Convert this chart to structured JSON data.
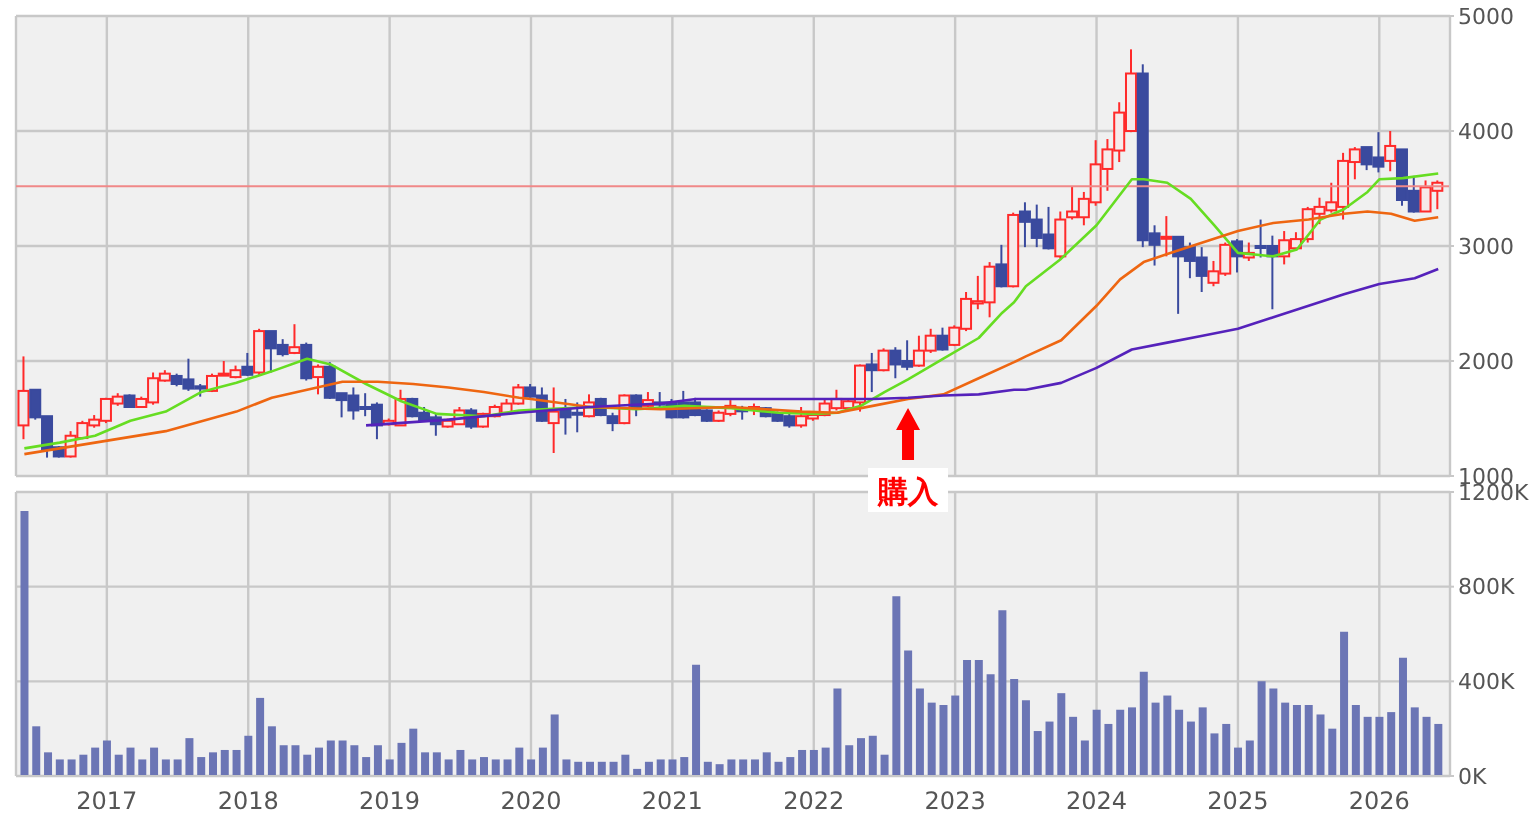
{
  "chart_data": [
    {
      "type": "candlestick",
      "x": [
        "2016-06",
        "2016-07",
        "2016-08",
        "2016-09",
        "2016-10",
        "2016-11",
        "2016-12",
        "2017-01",
        "2017-02",
        "2017-03",
        "2017-04",
        "2017-05",
        "2017-06",
        "2017-07",
        "2017-08",
        "2017-09",
        "2017-10",
        "2017-11",
        "2017-12",
        "2018-01",
        "2018-02",
        "2018-03",
        "2018-04",
        "2018-05",
        "2018-06",
        "2018-07",
        "2018-08",
        "2018-09",
        "2018-10",
        "2018-11",
        "2018-12",
        "2019-01",
        "2019-02",
        "2019-03",
        "2019-04",
        "2019-05",
        "2019-06",
        "2019-07",
        "2019-08",
        "2019-09",
        "2019-10",
        "2019-11",
        "2019-12",
        "2020-01",
        "2020-02",
        "2020-03",
        "2020-04",
        "2020-05",
        "2020-06",
        "2020-07",
        "2020-08",
        "2020-09",
        "2020-10",
        "2020-11",
        "2020-12",
        "2021-01",
        "2021-02",
        "2021-03",
        "2021-04",
        "2021-05",
        "2021-06",
        "2021-07",
        "2021-08",
        "2021-09",
        "2021-10",
        "2021-11",
        "2021-12",
        "2022-01",
        "2022-02",
        "2022-03",
        "2022-04",
        "2022-05",
        "2022-06",
        "2022-07",
        "2022-08",
        "2022-09",
        "2022-10",
        "2022-11",
        "2022-12",
        "2023-01",
        "2023-02",
        "2023-03",
        "2023-04",
        "2023-05",
        "2023-06",
        "2023-07",
        "2023-08",
        "2023-09",
        "2023-10",
        "2023-11",
        "2023-12",
        "2024-01",
        "2024-02",
        "2024-03",
        "2024-04",
        "2024-05",
        "2024-06",
        "2024-07",
        "2024-08",
        "2024-09",
        "2024-10",
        "2024-11",
        "2024-12",
        "2025-01",
        "2025-02",
        "2025-03",
        "2025-04",
        "2025-05",
        "2025-06",
        "2025-07",
        "2025-08",
        "2025-09",
        "2025-10",
        "2025-11",
        "2025-12",
        "2026-01",
        "2026-02",
        "2026-03",
        "2026-04",
        "2026-05",
        "2026-06"
      ],
      "ohlc": [
        [
          1440,
          2040,
          1320,
          1740
        ],
        [
          1750,
          1750,
          1490,
          1510
        ],
        [
          1520,
          1520,
          1160,
          1230
        ],
        [
          1250,
          1260,
          1160,
          1170
        ],
        [
          1170,
          1390,
          1160,
          1350
        ],
        [
          1330,
          1480,
          1320,
          1460
        ],
        [
          1440,
          1530,
          1420,
          1490
        ],
        [
          1480,
          1680,
          1460,
          1670
        ],
        [
          1630,
          1720,
          1610,
          1690
        ],
        [
          1700,
          1710,
          1600,
          1600
        ],
        [
          1600,
          1690,
          1600,
          1670
        ],
        [
          1640,
          1900,
          1620,
          1850
        ],
        [
          1830,
          1920,
          1820,
          1890
        ],
        [
          1870,
          1890,
          1780,
          1800
        ],
        [
          1840,
          2020,
          1740,
          1760
        ],
        [
          1780,
          1800,
          1690,
          1760
        ],
        [
          1740,
          1890,
          1730,
          1870
        ],
        [
          1880,
          2000,
          1880,
          1890
        ],
        [
          1860,
          1960,
          1850,
          1920
        ],
        [
          1950,
          2070,
          1870,
          1880
        ],
        [
          1900,
          2280,
          1870,
          2260
        ],
        [
          2260,
          2260,
          1900,
          2110
        ],
        [
          2140,
          2190,
          2040,
          2060
        ],
        [
          2070,
          2320,
          2060,
          2120
        ],
        [
          2140,
          2160,
          1830,
          1850
        ],
        [
          1860,
          1970,
          1710,
          1950
        ],
        [
          1950,
          1990,
          1670,
          1680
        ],
        [
          1720,
          1720,
          1510,
          1660
        ],
        [
          1700,
          1770,
          1490,
          1570
        ],
        [
          1600,
          1720,
          1520,
          1590
        ],
        [
          1620,
          1640,
          1320,
          1440
        ],
        [
          1450,
          1500,
          1440,
          1480
        ],
        [
          1440,
          1750,
          1440,
          1670
        ],
        [
          1670,
          1680,
          1510,
          1520
        ],
        [
          1550,
          1600,
          1470,
          1480
        ],
        [
          1510,
          1540,
          1350,
          1450
        ],
        [
          1430,
          1500,
          1420,
          1480
        ],
        [
          1450,
          1600,
          1450,
          1570
        ],
        [
          1570,
          1590,
          1410,
          1430
        ],
        [
          1430,
          1550,
          1420,
          1540
        ],
        [
          1520,
          1620,
          1510,
          1600
        ],
        [
          1550,
          1670,
          1540,
          1630
        ],
        [
          1630,
          1800,
          1620,
          1770
        ],
        [
          1770,
          1800,
          1680,
          1690
        ],
        [
          1700,
          1770,
          1470,
          1480
        ],
        [
          1460,
          1770,
          1200,
          1560
        ],
        [
          1580,
          1670,
          1360,
          1510
        ],
        [
          1550,
          1640,
          1380,
          1540
        ],
        [
          1520,
          1710,
          1510,
          1640
        ],
        [
          1670,
          1680,
          1520,
          1530
        ],
        [
          1520,
          1550,
          1390,
          1460
        ],
        [
          1460,
          1710,
          1450,
          1700
        ],
        [
          1700,
          1710,
          1520,
          1590
        ],
        [
          1610,
          1730,
          1600,
          1660
        ],
        [
          1640,
          1730,
          1600,
          1620
        ],
        [
          1640,
          1670,
          1500,
          1510
        ],
        [
          1640,
          1740,
          1500,
          1510
        ],
        [
          1640,
          1680,
          1520,
          1530
        ],
        [
          1570,
          1580,
          1470,
          1480
        ],
        [
          1480,
          1570,
          1470,
          1550
        ],
        [
          1540,
          1660,
          1520,
          1610
        ],
        [
          1580,
          1610,
          1490,
          1570
        ],
        [
          1590,
          1630,
          1530,
          1600
        ],
        [
          1590,
          1600,
          1510,
          1520
        ],
        [
          1540,
          1560,
          1470,
          1480
        ],
        [
          1520,
          1550,
          1420,
          1440
        ],
        [
          1440,
          1600,
          1420,
          1520
        ],
        [
          1500,
          1550,
          1480,
          1530
        ],
        [
          1530,
          1670,
          1520,
          1630
        ],
        [
          1590,
          1750,
          1570,
          1670
        ],
        [
          1590,
          1670,
          1580,
          1650
        ],
        [
          1640,
          1970,
          1560,
          1960
        ],
        [
          1970,
          2070,
          1730,
          1920
        ],
        [
          1920,
          2110,
          1910,
          2090
        ],
        [
          2090,
          2120,
          1850,
          1970
        ],
        [
          2000,
          2180,
          1920,
          1950
        ],
        [
          1960,
          2220,
          1950,
          2090
        ],
        [
          2090,
          2280,
          2070,
          2220
        ],
        [
          2220,
          2290,
          2090,
          2100
        ],
        [
          2140,
          2310,
          2130,
          2290
        ],
        [
          2280,
          2600,
          2260,
          2540
        ],
        [
          2500,
          2740,
          2450,
          2520
        ],
        [
          2510,
          2860,
          2380,
          2820
        ],
        [
          2840,
          3010,
          2640,
          2650
        ],
        [
          2650,
          3290,
          2640,
          3270
        ],
        [
          3300,
          3380,
          2990,
          3210
        ],
        [
          3230,
          3360,
          2990,
          3070
        ],
        [
          3100,
          3340,
          2970,
          2980
        ],
        [
          2910,
          3300,
          2890,
          3230
        ],
        [
          3250,
          3520,
          3230,
          3300
        ],
        [
          3250,
          3470,
          3180,
          3410
        ],
        [
          3380,
          3920,
          3350,
          3710
        ],
        [
          3670,
          3930,
          3480,
          3840
        ],
        [
          3830,
          4250,
          3730,
          4160
        ],
        [
          4000,
          4710,
          3990,
          4500
        ],
        [
          4500,
          4580,
          2990,
          3050
        ],
        [
          3110,
          3180,
          2830,
          3010
        ],
        [
          3070,
          3260,
          2910,
          3080
        ],
        [
          3080,
          3080,
          2410,
          2910
        ],
        [
          2990,
          3030,
          2720,
          2870
        ],
        [
          2900,
          2990,
          2600,
          2740
        ],
        [
          2680,
          2870,
          2650,
          2780
        ],
        [
          2760,
          3030,
          2740,
          3010
        ],
        [
          3040,
          3060,
          2770,
          2910
        ],
        [
          2900,
          3030,
          2870,
          2940
        ],
        [
          3000,
          3230,
          2900,
          2990
        ],
        [
          3000,
          3090,
          2450,
          2910
        ],
        [
          2910,
          3130,
          2840,
          3050
        ],
        [
          2980,
          3120,
          2960,
          3060
        ],
        [
          3060,
          3340,
          3030,
          3320
        ],
        [
          3280,
          3420,
          3190,
          3340
        ],
        [
          3310,
          3550,
          3290,
          3380
        ],
        [
          3340,
          3810,
          3230,
          3740
        ],
        [
          3730,
          3860,
          3580,
          3840
        ],
        [
          3860,
          3860,
          3660,
          3710
        ],
        [
          3770,
          3990,
          3640,
          3690
        ],
        [
          3740,
          4000,
          3650,
          3870
        ],
        [
          3840,
          3840,
          3350,
          3400
        ],
        [
          3480,
          3610,
          3290,
          3300
        ],
        [
          3300,
          3570,
          3300,
          3510
        ],
        [
          3480,
          3570,
          3320,
          3550
        ]
      ],
      "series": [
        {
          "type": "line",
          "color": "#66dd22",
          "x": [
            "2016-06",
            "2016-09",
            "2016-12",
            "2017-03",
            "2017-06",
            "2017-09",
            "2017-12",
            "2018-03",
            "2018-06",
            "2018-08",
            "2018-11",
            "2019-02",
            "2019-05",
            "2019-09",
            "2019-12",
            "2020-02",
            "2020-06",
            "2020-10",
            "2021-02",
            "2021-06",
            "2021-10",
            "2022-01",
            "2022-03",
            "2022-05",
            "2022-07",
            "2022-09",
            "2022-12",
            "2023-03",
            "2023-05",
            "2023-06",
            "2023-07",
            "2023-10",
            "2024-01",
            "2024-04",
            "2024-05",
            "2024-07",
            "2024-09",
            "2024-11",
            "2025-01",
            "2025-04",
            "2025-06",
            "2025-08",
            "2025-10",
            "2025-12",
            "2026-01",
            "2026-03",
            "2026-06"
          ],
          "values": [
            1240,
            1290,
            1350,
            1480,
            1560,
            1730,
            1810,
            1910,
            2020,
            1970,
            1800,
            1650,
            1540,
            1520,
            1570,
            1580,
            1600,
            1580,
            1610,
            1590,
            1550,
            1540,
            1550,
            1610,
            1730,
            1840,
            2020,
            2200,
            2420,
            2510,
            2650,
            2890,
            3180,
            3580,
            3580,
            3550,
            3410,
            3180,
            2940,
            2910,
            2970,
            3230,
            3320,
            3470,
            3580,
            3590,
            3630
          ]
        },
        {
          "type": "line",
          "color": "#ee6611",
          "x": [
            "2016-06",
            "2016-12",
            "2017-06",
            "2017-12",
            "2018-03",
            "2018-06",
            "2018-09",
            "2018-12",
            "2019-03",
            "2019-06",
            "2019-09",
            "2019-12",
            "2020-01",
            "2020-06",
            "2020-12",
            "2021-06",
            "2021-12",
            "2022-03",
            "2022-06",
            "2022-09",
            "2022-12",
            "2023-03",
            "2023-06",
            "2023-07",
            "2023-10",
            "2024-01",
            "2024-03",
            "2024-05",
            "2024-07",
            "2024-10",
            "2025-01",
            "2025-04",
            "2025-07",
            "2025-10",
            "2025-12",
            "2026-02",
            "2026-04",
            "2026-06"
          ],
          "values": [
            1190,
            1290,
            1390,
            1560,
            1680,
            1750,
            1820,
            1820,
            1800,
            1770,
            1730,
            1680,
            1670,
            1600,
            1580,
            1600,
            1560,
            1550,
            1610,
            1670,
            1710,
            1850,
            1990,
            2040,
            2180,
            2480,
            2710,
            2860,
            2930,
            3030,
            3130,
            3200,
            3230,
            3280,
            3300,
            3280,
            3220,
            3250
          ]
        },
        {
          "type": "line",
          "color": "#5522bb",
          "x": [
            "2018-11",
            "2019-06",
            "2019-12",
            "2020-06",
            "2020-12",
            "2021-03",
            "2021-12",
            "2022-06",
            "2022-09",
            "2022-12",
            "2023-03",
            "2023-06",
            "2023-07",
            "2023-10",
            "2024-01",
            "2024-04",
            "2024-07",
            "2024-10",
            "2025-01",
            "2025-04",
            "2025-07",
            "2025-10",
            "2026-01",
            "2026-04",
            "2026-06"
          ],
          "values": [
            1440,
            1490,
            1550,
            1600,
            1630,
            1670,
            1670,
            1670,
            1680,
            1700,
            1710,
            1750,
            1750,
            1810,
            1940,
            2100,
            2160,
            2220,
            2280,
            2380,
            2480,
            2580,
            2670,
            2720,
            2800
          ]
        }
      ],
      "xlim": [
        "2016-05-10",
        "2026-07-01"
      ],
      "xticks": [
        "2017",
        "2018",
        "2019",
        "2020",
        "2021",
        "2022",
        "2023",
        "2024",
        "2025",
        "2026"
      ],
      "ylim": [
        1000,
        5000
      ],
      "yticks": [
        1000,
        2000,
        3000,
        4000,
        5000
      ],
      "grid": true,
      "tick_labels": "y",
      "ref_lines": [
        {
          "axis": "y",
          "value": 3520,
          "color": "#f08888"
        }
      ],
      "annotations": [
        {
          "text": "購入",
          "x": "2022-09",
          "y": 1800
        }
      ]
    },
    {
      "type": "bar",
      "color": "#6b75b5",
      "x": [
        "2016-06",
        "2016-07",
        "2016-08",
        "2016-09",
        "2016-10",
        "2016-11",
        "2016-12",
        "2017-01",
        "2017-02",
        "2017-03",
        "2017-04",
        "2017-05",
        "2017-06",
        "2017-07",
        "2017-08",
        "2017-09",
        "2017-10",
        "2017-11",
        "2017-12",
        "2018-01",
        "2018-02",
        "2018-03",
        "2018-04",
        "2018-05",
        "2018-06",
        "2018-07",
        "2018-08",
        "2018-09",
        "2018-10",
        "2018-11",
        "2018-12",
        "2019-01",
        "2019-02",
        "2019-03",
        "2019-04",
        "2019-05",
        "2019-06",
        "2019-07",
        "2019-08",
        "2019-09",
        "2019-10",
        "2019-11",
        "2019-12",
        "2020-01",
        "2020-02",
        "2020-03",
        "2020-04",
        "2020-05",
        "2020-06",
        "2020-07",
        "2020-08",
        "2020-09",
        "2020-10",
        "2020-11",
        "2020-12",
        "2021-01",
        "2021-02",
        "2021-03",
        "2021-04",
        "2021-05",
        "2021-06",
        "2021-07",
        "2021-08",
        "2021-09",
        "2021-10",
        "2021-11",
        "2021-12",
        "2022-01",
        "2022-02",
        "2022-03",
        "2022-04",
        "2022-05",
        "2022-06",
        "2022-07",
        "2022-08",
        "2022-09",
        "2022-10",
        "2022-11",
        "2022-12",
        "2023-01",
        "2023-02",
        "2023-03",
        "2023-04",
        "2023-05",
        "2023-06",
        "2023-07",
        "2023-08",
        "2023-09",
        "2023-10",
        "2023-11",
        "2023-12",
        "2024-01",
        "2024-02",
        "2024-03",
        "2024-04",
        "2024-05",
        "2024-06",
        "2024-07",
        "2024-08",
        "2024-09",
        "2024-10",
        "2024-11",
        "2024-12",
        "2025-01",
        "2025-02",
        "2025-03",
        "2025-04",
        "2025-05",
        "2025-06",
        "2025-07",
        "2025-08",
        "2025-09",
        "2025-10",
        "2025-11",
        "2025-12",
        "2026-01",
        "2026-02",
        "2026-03",
        "2026-04",
        "2026-05",
        "2026-06"
      ],
      "values": [
        1120000,
        210000,
        100000,
        70000,
        70000,
        90000,
        120000,
        150000,
        90000,
        120000,
        70000,
        120000,
        70000,
        70000,
        160000,
        80000,
        100000,
        110000,
        110000,
        170000,
        330000,
        210000,
        130000,
        130000,
        90000,
        120000,
        150000,
        150000,
        130000,
        80000,
        130000,
        70000,
        140000,
        200000,
        100000,
        100000,
        70000,
        110000,
        70000,
        80000,
        70000,
        70000,
        120000,
        70000,
        120000,
        260000,
        70000,
        60000,
        60000,
        60000,
        60000,
        90000,
        30000,
        60000,
        70000,
        70000,
        80000,
        470000,
        60000,
        50000,
        70000,
        70000,
        70000,
        100000,
        60000,
        80000,
        110000,
        110000,
        120000,
        370000,
        130000,
        160000,
        170000,
        90000,
        760000,
        530000,
        370000,
        310000,
        300000,
        340000,
        490000,
        490000,
        430000,
        700000,
        410000,
        320000,
        190000,
        230000,
        350000,
        250000,
        150000,
        280000,
        220000,
        280000,
        290000,
        440000,
        310000,
        340000,
        280000,
        230000,
        290000,
        180000,
        220000,
        120000,
        150000,
        400000,
        370000,
        310000,
        300000,
        300000,
        260000,
        200000,
        610000,
        300000,
        250000,
        250000,
        270000,
        500000,
        290000,
        250000,
        220000
      ],
      "xlim": [
        "2016-05-10",
        "2026-07-01"
      ],
      "xticks": [
        "2017",
        "2018",
        "2019",
        "2020",
        "2021",
        "2022",
        "2023",
        "2024",
        "2025",
        "2026"
      ],
      "ylim": [
        0,
        1200000
      ],
      "yticks": [
        {
          "value": 0,
          "label": "0K"
        },
        {
          "value": 400000,
          "label": "400K"
        },
        {
          "value": 800000,
          "label": "800K"
        },
        {
          "value": 1200000,
          "label": "1200K"
        }
      ],
      "grid": true
    }
  ]
}
